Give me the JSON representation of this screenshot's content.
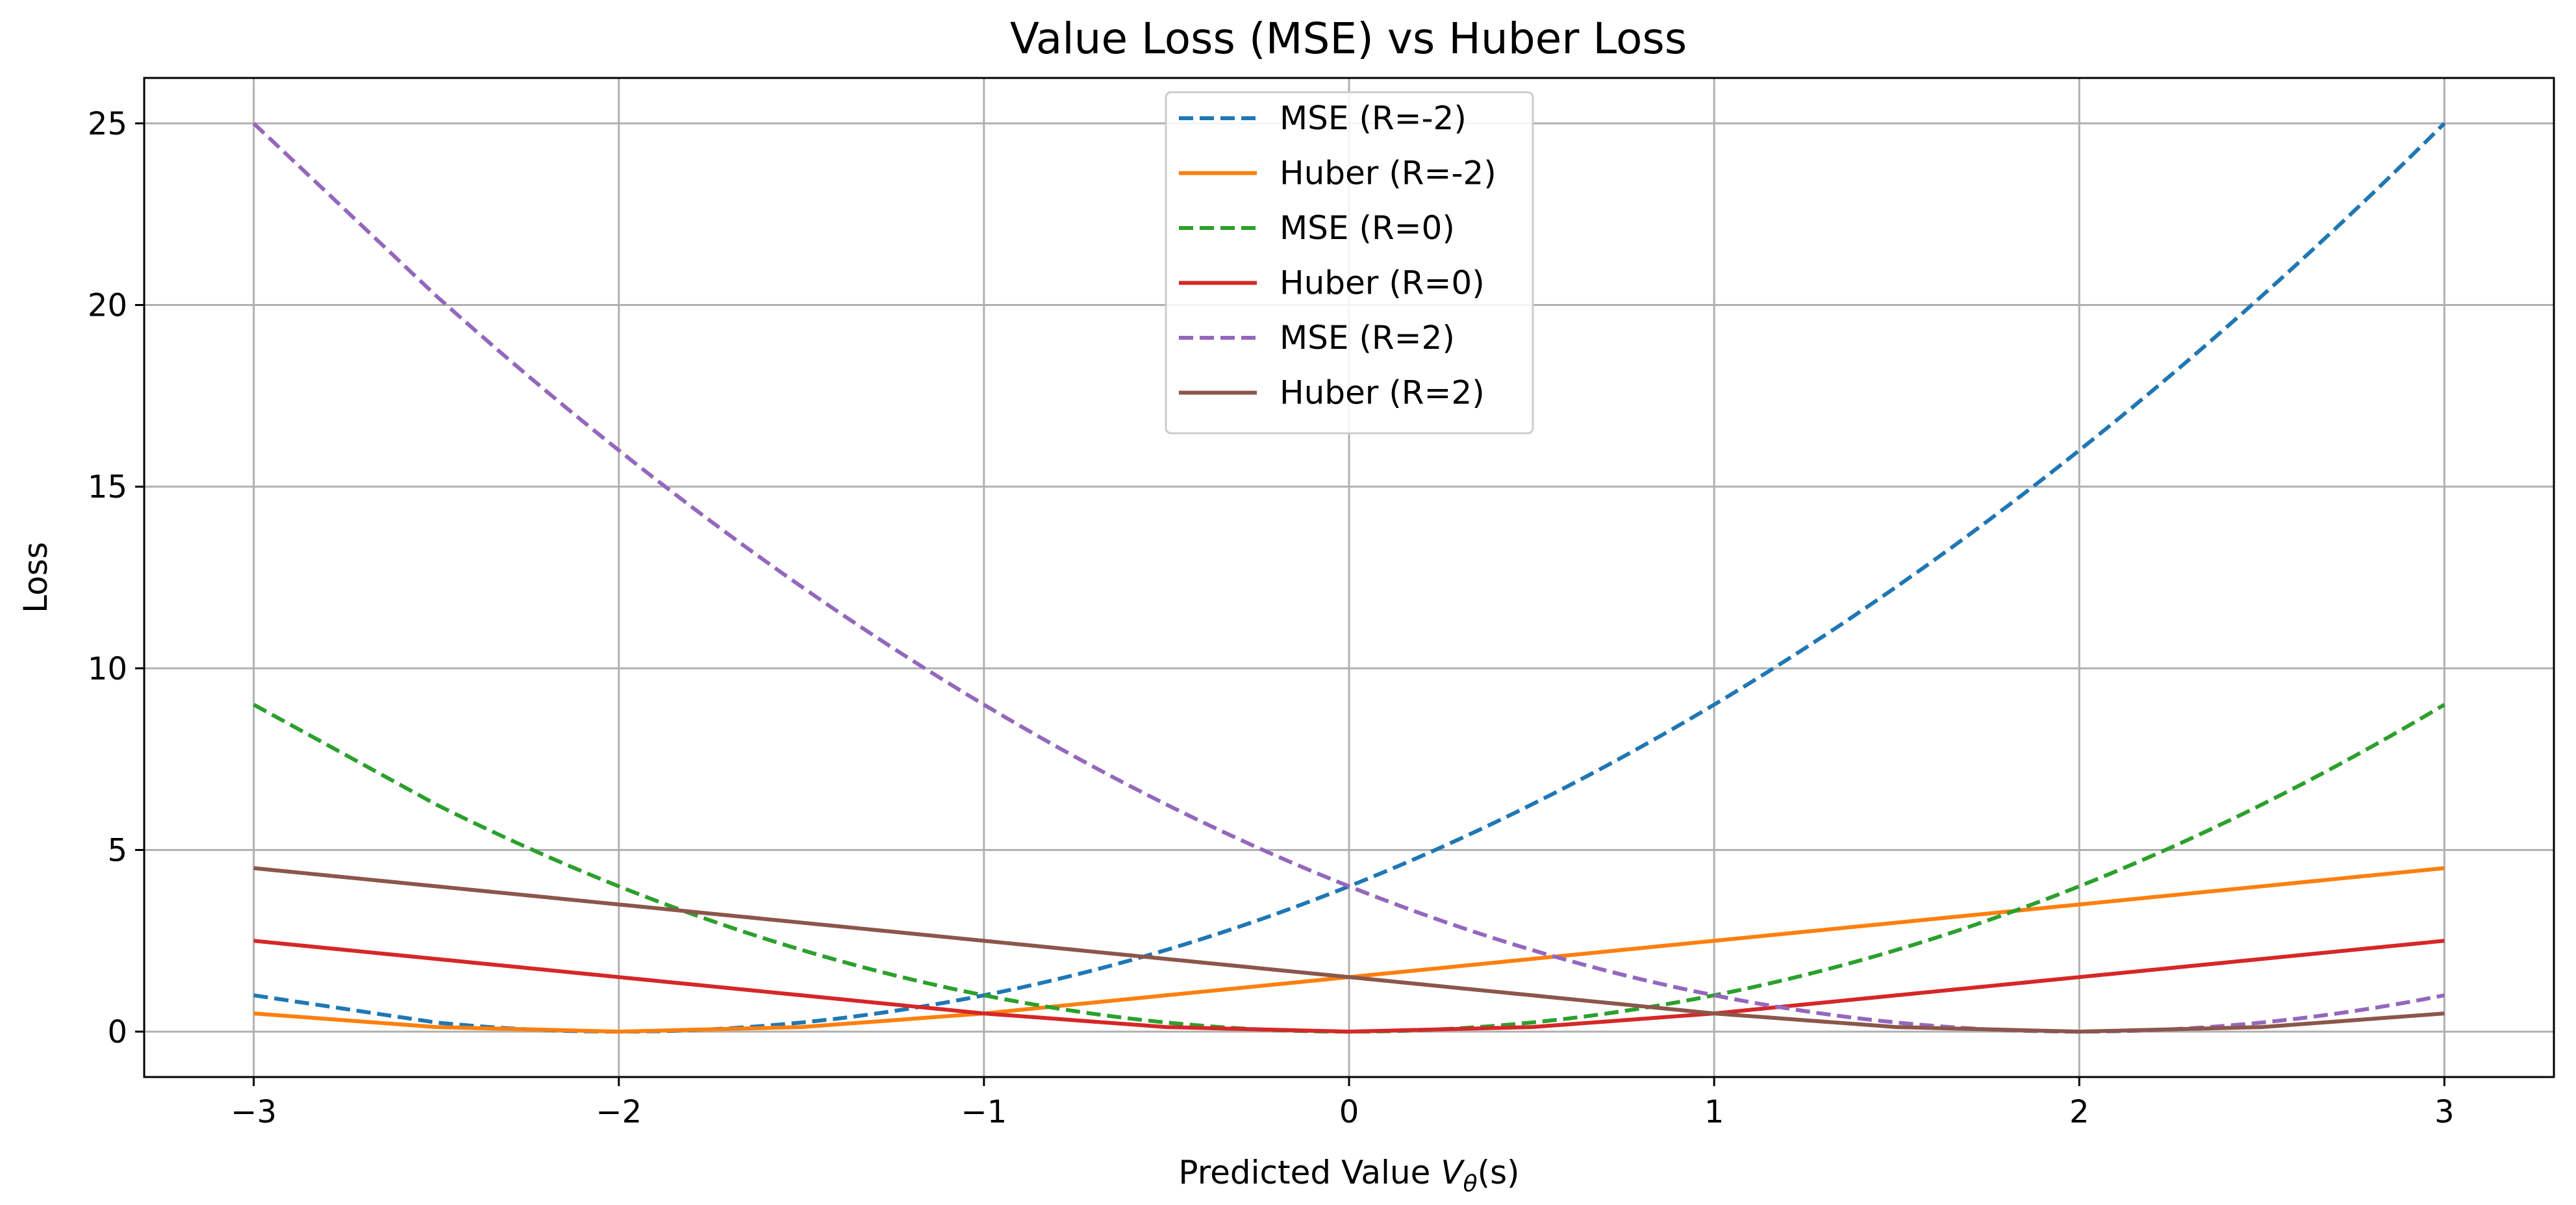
{
  "chart_data": {
    "type": "line",
    "title": "Value Loss (MSE) vs Huber Loss",
    "xlabel": "Predicted Value Vθ(s)",
    "xlabel_main": "Predicted Value ",
    "xlabel_var": "V",
    "xlabel_sub": "θ",
    "xlabel_arg": "(s)",
    "ylabel": "Loss",
    "xlim": [
      -3.3,
      3.3
    ],
    "ylim": [
      -1.25,
      26.25
    ],
    "xticks": [
      -3,
      -2,
      -1,
      0,
      1,
      2,
      3
    ],
    "xtick_labels": [
      "−3",
      "−2",
      "−1",
      "0",
      "1",
      "2",
      "3"
    ],
    "yticks": [
      0,
      5,
      10,
      15,
      20,
      25
    ],
    "ytick_labels": [
      "0",
      "5",
      "10",
      "15",
      "20",
      "25"
    ],
    "grid": true,
    "legend_position": "top-center",
    "x": [
      -3,
      -2.5,
      -2,
      -1.5,
      -1,
      -0.5,
      0,
      0.5,
      1,
      1.5,
      2,
      2.5,
      3
    ],
    "series": [
      {
        "name": "MSE (R=-2)",
        "style": "dashed",
        "color": "#1f77b4",
        "values": [
          1,
          0.25,
          0,
          0.25,
          1,
          2.25,
          4,
          6.25,
          9,
          12.25,
          16,
          20.25,
          25
        ]
      },
      {
        "name": "Huber (R=-2)",
        "style": "solid",
        "color": "#ff7f0e",
        "values": [
          0.5,
          0.125,
          0,
          0.125,
          0.5,
          1,
          1.5,
          2,
          2.5,
          3,
          3.5,
          4,
          4.5
        ]
      },
      {
        "name": "MSE (R=0)",
        "style": "dashed",
        "color": "#2ca02c",
        "values": [
          9,
          6.25,
          4,
          2.25,
          1,
          0.25,
          0,
          0.25,
          1,
          2.25,
          4,
          6.25,
          9
        ]
      },
      {
        "name": "Huber (R=0)",
        "style": "solid",
        "color": "#d62728",
        "values": [
          2.5,
          2,
          1.5,
          1,
          0.5,
          0.125,
          0,
          0.125,
          0.5,
          1,
          1.5,
          2,
          2.5
        ]
      },
      {
        "name": "MSE (R=2)",
        "style": "dashed",
        "color": "#9467bd",
        "values": [
          25,
          20.25,
          16,
          12.25,
          9,
          6.25,
          4,
          2.25,
          1,
          0.25,
          0,
          0.25,
          1
        ]
      },
      {
        "name": "Huber (R=2)",
        "style": "solid",
        "color": "#8c564b",
        "values": [
          4.5,
          4,
          3.5,
          3,
          2.5,
          2,
          1.5,
          1,
          0.5,
          0.125,
          0,
          0.125,
          0.5
        ]
      }
    ]
  }
}
